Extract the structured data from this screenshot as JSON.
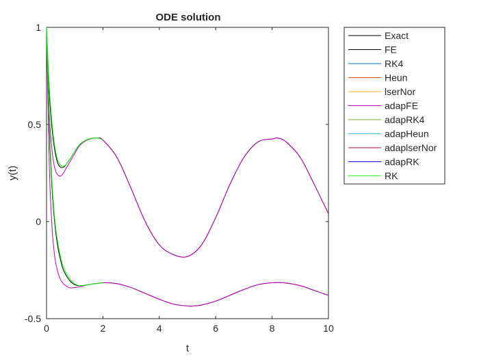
{
  "chart_data": {
    "type": "line",
    "title": "ODE solution",
    "xlabel": "t",
    "ylabel": "y(t)",
    "xlim": [
      0,
      10
    ],
    "ylim": [
      -0.5,
      1
    ],
    "xticks": [
      0,
      2,
      4,
      6,
      8,
      10
    ],
    "yticks": [
      -0.5,
      0,
      0.5,
      1
    ],
    "ytick_labels": [
      "-0.5",
      "0",
      "0.5",
      "1"
    ],
    "grid": false,
    "legend_position": "outside top-right",
    "series": [
      {
        "name": "Exact",
        "color": "#000000",
        "branches": [
          {
            "x": [
              0,
              0.1,
              0.2,
              0.3,
              0.4,
              0.5,
              0.6,
              0.7,
              0.8,
              1.0,
              1.2,
              1.5,
              1.8,
              2.0,
              2.5,
              3.0,
              3.5,
              4.0,
              4.5,
              5.0,
              5.5,
              6.0,
              6.5,
              7.0,
              7.5,
              8.0,
              8.2,
              8.5,
              9.0,
              9.5,
              10.0
            ],
            "y": [
              1,
              0.66,
              0.47,
              0.36,
              0.3,
              0.28,
              0.28,
              0.295,
              0.315,
              0.36,
              0.4,
              0.425,
              0.43,
              0.42,
              0.33,
              0.17,
              0.0,
              -0.12,
              -0.17,
              -0.18,
              -0.12,
              0.02,
              0.19,
              0.33,
              0.41,
              0.425,
              0.43,
              0.41,
              0.33,
              0.19,
              0.04
            ]
          },
          {
            "x": [
              0,
              0.1,
              0.2,
              0.3,
              0.4,
              0.5,
              0.6,
              0.8,
              1.0,
              1.2,
              1.5,
              2.0,
              2.5,
              3.0,
              3.5,
              4.0,
              4.5,
              5.0,
              5.2,
              5.5,
              6.0,
              6.5,
              7.0,
              7.5,
              8.0,
              8.4,
              9.0,
              9.5,
              10.0
            ],
            "y": [
              1,
              0.47,
              0.16,
              -0.02,
              -0.13,
              -0.2,
              -0.25,
              -0.3,
              -0.325,
              -0.33,
              -0.325,
              -0.315,
              -0.32,
              -0.34,
              -0.37,
              -0.4,
              -0.425,
              -0.435,
              -0.435,
              -0.43,
              -0.41,
              -0.38,
              -0.35,
              -0.325,
              -0.315,
              -0.315,
              -0.33,
              -0.355,
              -0.38
            ]
          }
        ]
      },
      {
        "name": "FE",
        "color": "#000000"
      },
      {
        "name": "RK4",
        "color": "#0072BD"
      },
      {
        "name": "Heun",
        "color": "#D95319"
      },
      {
        "name": "lserNor",
        "color": "#EDB120"
      },
      {
        "name": "adapFE",
        "color": "#BF00BF",
        "branches": [
          {
            "x": [
              0,
              0.1,
              0.2,
              0.3,
              0.4,
              0.5,
              0.6,
              0.7,
              0.8,
              1.0,
              1.2,
              1.5,
              1.8,
              2.0,
              2.5,
              3.0,
              3.5,
              4.0,
              4.5,
              5.0,
              5.5,
              6.0,
              6.5,
              7.0,
              7.5,
              8.0,
              8.2,
              8.5,
              9.0,
              9.5,
              10.0
            ],
            "y": [
              1,
              0.55,
              0.36,
              0.27,
              0.24,
              0.235,
              0.25,
              0.275,
              0.3,
              0.35,
              0.395,
              0.423,
              0.43,
              0.42,
              0.33,
              0.17,
              0.0,
              -0.12,
              -0.17,
              -0.18,
              -0.12,
              0.02,
              0.19,
              0.33,
              0.41,
              0.425,
              0.43,
              0.41,
              0.33,
              0.19,
              0.04
            ]
          },
          {
            "x": [
              0,
              0.1,
              0.2,
              0.3,
              0.4,
              0.5,
              0.6,
              0.8,
              1.0,
              1.2,
              1.5,
              2.0,
              2.5,
              3.0,
              3.5,
              4.0,
              4.5,
              5.0,
              5.2,
              5.5,
              6.0,
              6.5,
              7.0,
              7.5,
              8.0,
              8.4,
              9.0,
              9.5,
              10.0
            ],
            "y": [
              1,
              0.28,
              -0.04,
              -0.19,
              -0.26,
              -0.3,
              -0.32,
              -0.34,
              -0.34,
              -0.335,
              -0.325,
              -0.315,
              -0.32,
              -0.34,
              -0.37,
              -0.4,
              -0.425,
              -0.435,
              -0.435,
              -0.43,
              -0.41,
              -0.38,
              -0.35,
              -0.325,
              -0.315,
              -0.315,
              -0.33,
              -0.355,
              -0.38
            ]
          }
        ]
      },
      {
        "name": "adapRK4",
        "color": "#77AC30"
      },
      {
        "name": "adapHeun",
        "color": "#4DBEEE"
      },
      {
        "name": "adaplserNor",
        "color": "#A2142F"
      },
      {
        "name": "adapRK",
        "color": "#0000FF"
      },
      {
        "name": "RK",
        "color": "#00FF00",
        "branches": [
          {
            "x": [
              0,
              0.1,
              0.2,
              0.3,
              0.4,
              0.5,
              0.6,
              0.7,
              0.8,
              1.0,
              1.2,
              1.5,
              1.8,
              2.0
            ],
            "y": [
              1,
              0.69,
              0.5,
              0.38,
              0.315,
              0.29,
              0.285,
              0.295,
              0.315,
              0.36,
              0.4,
              0.425,
              0.43,
              0.42
            ]
          },
          {
            "x": [
              0,
              0.1,
              0.2,
              0.3,
              0.4,
              0.5,
              0.6,
              0.8,
              1.0,
              1.2,
              1.5,
              2.0
            ],
            "y": [
              1,
              0.5,
              0.19,
              0.0,
              -0.11,
              -0.18,
              -0.235,
              -0.29,
              -0.32,
              -0.33,
              -0.325,
              -0.315
            ]
          }
        ]
      }
    ]
  }
}
